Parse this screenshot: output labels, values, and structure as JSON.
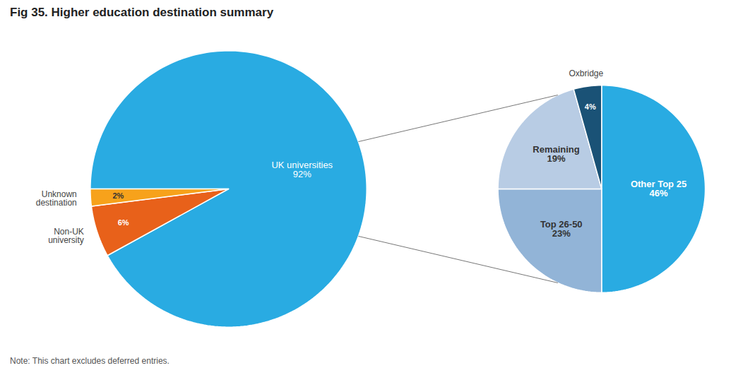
{
  "chart_data": [
    {
      "type": "pie",
      "title": "Fig 35. Higher education destination summary",
      "annotations": [
        "Note: This chart excludes deferred entries."
      ],
      "categories": [
        "UK universities",
        "Non-UK\nuniversity",
        "Unknown\ndestination"
      ],
      "values": [
        92,
        6,
        2
      ],
      "value_labels": [
        "92%",
        "6%",
        "2%"
      ],
      "colors": [
        "#29abe2",
        "#e8611a",
        "#f7a21b"
      ]
    },
    {
      "type": "pie",
      "categories": [
        "Other Top 25",
        "Top 26-50",
        "Remaining",
        "Oxbridge"
      ],
      "values": [
        46,
        23,
        19,
        4
      ],
      "value_labels": [
        "46%",
        "23%",
        "19%",
        "4%"
      ],
      "colors": [
        "#29abe2",
        "#92b4d7",
        "#b8cce4",
        "#1a5276"
      ]
    }
  ]
}
